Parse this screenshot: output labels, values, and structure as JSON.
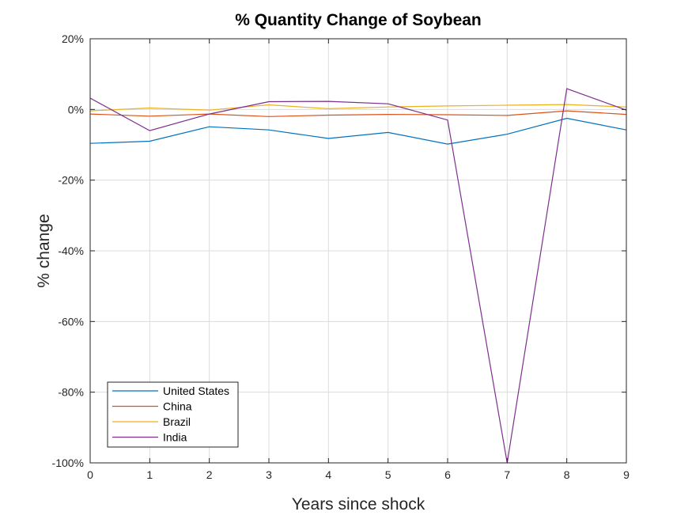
{
  "chart_data": {
    "type": "line",
    "title": "% Quantity Change of Soybean",
    "xlabel": "Years since shock",
    "ylabel": "% change",
    "x": [
      0,
      1,
      2,
      3,
      4,
      5,
      6,
      7,
      8,
      9
    ],
    "xlim": [
      0,
      9
    ],
    "ylim": [
      -100,
      20
    ],
    "xticks": [
      "0",
      "1",
      "2",
      "3",
      "4",
      "5",
      "6",
      "7",
      "8",
      "9"
    ],
    "yticks": [
      {
        "value": 20,
        "label": "20%"
      },
      {
        "value": 0,
        "label": "0%"
      },
      {
        "value": -20,
        "label": "-20%"
      },
      {
        "value": -40,
        "label": "-40%"
      },
      {
        "value": -60,
        "label": "-60%"
      },
      {
        "value": -80,
        "label": "-80%"
      },
      {
        "value": -100,
        "label": "-100%"
      }
    ],
    "grid": true,
    "legend_position": "bottom-left",
    "series": [
      {
        "name": "United States",
        "color": "#0072BD",
        "values": [
          -9.6,
          -9.0,
          -4.9,
          -5.8,
          -8.2,
          -6.5,
          -9.8,
          -7.0,
          -2.5,
          -5.8
        ]
      },
      {
        "name": "China",
        "color": "#D95319",
        "values": [
          -1.3,
          -1.9,
          -1.3,
          -2.0,
          -1.6,
          -1.4,
          -1.5,
          -1.7,
          -0.4,
          -1.4
        ]
      },
      {
        "name": "Brazil",
        "color": "#EDB120",
        "values": [
          -0.4,
          0.4,
          -0.2,
          1.3,
          0.2,
          0.7,
          1.0,
          1.2,
          1.4,
          0.7
        ]
      },
      {
        "name": "India",
        "color": "#7E2F8E",
        "values": [
          3.2,
          -6.0,
          -1.3,
          2.2,
          2.3,
          1.6,
          -3.0,
          -100,
          5.9,
          -0.2
        ]
      }
    ]
  }
}
